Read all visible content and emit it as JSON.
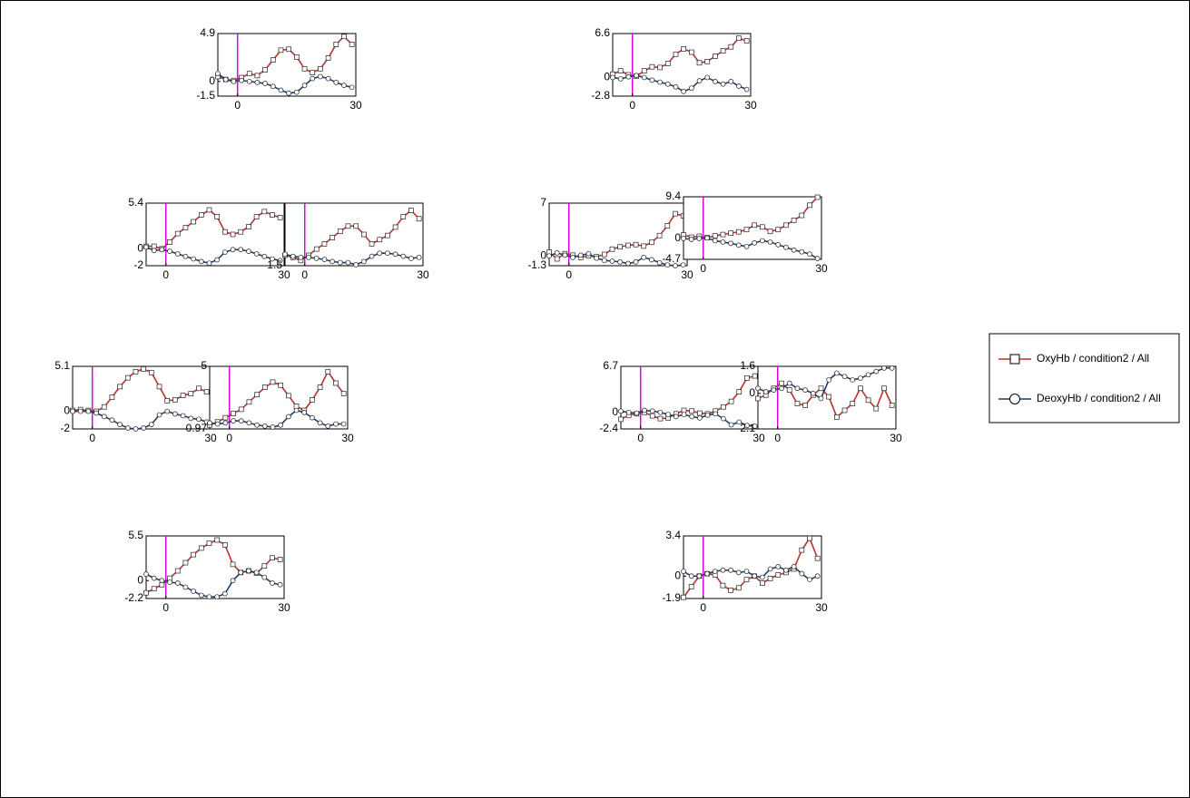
{
  "chart_data": [
    {
      "type": "line",
      "legend": "right",
      "xlim": [
        -5,
        30
      ],
      "xticks": [
        0,
        30
      ],
      "ylim": [
        -1.5,
        4.9
      ],
      "yticks": [
        -1.5,
        0,
        4.9
      ],
      "vlines": [
        0
      ],
      "x": [
        -5,
        -3,
        -1,
        1,
        3,
        5,
        7,
        9,
        11,
        13,
        15,
        17,
        19,
        21,
        23,
        25,
        27,
        29
      ],
      "series": [
        {
          "name": "OxyHb / condition2 / All",
          "color": "#c0302a",
          "values": [
            0.5,
            0.2,
            0.1,
            0.4,
            0.8,
            0.6,
            1.2,
            2.2,
            3.2,
            3.3,
            2.5,
            1.3,
            0.9,
            1.3,
            2.4,
            3.8,
            4.6,
            3.8
          ]
        },
        {
          "name": "DeoxyHb / condition2 / All",
          "color": "#1f3d6e",
          "values": [
            0.8,
            0.2,
            0,
            0.1,
            0,
            -0.1,
            -0.2,
            -0.5,
            -0.9,
            -1.2,
            -1.1,
            -0.4,
            0.3,
            0.5,
            0.3,
            -0.1,
            -0.4,
            -0.6
          ]
        }
      ]
    },
    {
      "type": "line",
      "xlim": [
        -5,
        30
      ],
      "xticks": [
        0,
        30
      ],
      "ylim": [
        -2.8,
        6.6
      ],
      "yticks": [
        -2.8,
        0,
        6.6
      ],
      "vlines": [
        0
      ],
      "x": [
        -5,
        -3,
        -1,
        1,
        3,
        5,
        7,
        9,
        11,
        13,
        15,
        17,
        19,
        21,
        23,
        25,
        27,
        29
      ],
      "series": [
        {
          "name": "OxyHb / condition2 / All",
          "color": "#c0302a",
          "values": [
            0.5,
            1,
            0.4,
            0.2,
            1,
            1.6,
            1.5,
            2.1,
            3.5,
            4.3,
            3.8,
            2.2,
            2.4,
            3.2,
            4,
            4.6,
            5.9,
            5.5
          ]
        },
        {
          "name": "DeoxyHb / condition2 / All",
          "color": "#1f3d6e",
          "values": [
            0,
            -0.2,
            0.1,
            0.3,
            0,
            -0.4,
            -0.7,
            -1,
            -1.4,
            -2.1,
            -1.6,
            -0.5,
            0,
            -0.6,
            -1,
            -0.6,
            -1.3,
            -1.8
          ]
        }
      ]
    },
    {
      "type": "line",
      "xlim": [
        -5,
        30
      ],
      "xticks": [
        0,
        30
      ],
      "ylim": [
        -2,
        5.4
      ],
      "yticks": [
        -2,
        0,
        5.4
      ],
      "vlines": [
        0
      ],
      "x": [
        -5,
        -3,
        -1,
        1,
        3,
        5,
        7,
        9,
        11,
        13,
        15,
        17,
        19,
        21,
        23,
        25,
        27,
        29
      ],
      "series": [
        {
          "name": "OxyHb / condition2 / All",
          "color": "#c0302a",
          "values": [
            0.3,
            0.3,
            0,
            0.8,
            1.8,
            2.5,
            3.2,
            4,
            4.6,
            3.8,
            2,
            1.7,
            2,
            2.6,
            3.8,
            4.4,
            4,
            3.7
          ]
        },
        {
          "name": "DeoxyHb / condition2 / All",
          "color": "#1f3d6e",
          "values": [
            0.2,
            -0.2,
            -0.1,
            -0.3,
            -0.6,
            -0.9,
            -1.2,
            -1.5,
            -1.7,
            -1.3,
            -0.4,
            -0.1,
            -0.1,
            -0.3,
            -0.6,
            -0.9,
            -1.2,
            -1.4
          ]
        }
      ]
    },
    {
      "type": "line",
      "xlim": [
        -5,
        30
      ],
      "xticks": [
        0,
        30
      ],
      "ylim": [
        -1.5,
        4.5
      ],
      "yticks": [
        -1.5
      ],
      "vlines": [
        0
      ],
      "x": [
        -5,
        -3,
        -1,
        1,
        3,
        5,
        7,
        9,
        11,
        13,
        15,
        17,
        19,
        21,
        23,
        25,
        27,
        29
      ],
      "series": [
        {
          "name": "OxyHb / condition2 / All",
          "color": "#c0302a",
          "values": [
            -0.5,
            -0.7,
            -1,
            -0.5,
            0.1,
            0.6,
            1.2,
            1.8,
            2.3,
            2.3,
            1.5,
            0.6,
            1,
            1.4,
            2.2,
            3.2,
            3.8,
            3
          ]
        },
        {
          "name": "DeoxyHb / condition2 / All",
          "color": "#1f3d6e",
          "values": [
            -0.4,
            -0.6,
            -0.7,
            -0.7,
            -0.8,
            -0.9,
            -1.1,
            -1.2,
            -1.2,
            -1.4,
            -1.1,
            -0.6,
            -0.3,
            -0.3,
            -0.4,
            -0.6,
            -0.8,
            -0.7
          ]
        }
      ]
    },
    {
      "type": "line",
      "xlim": [
        -5,
        30
      ],
      "xticks": [
        0,
        30
      ],
      "ylim": [
        -1.3,
        7
      ],
      "yticks": [
        -1.3,
        0,
        7
      ],
      "vlines": [
        0
      ],
      "x": [
        -5,
        -3,
        -1,
        1,
        3,
        5,
        7,
        9,
        11,
        13,
        15,
        17,
        19,
        21,
        23,
        25,
        27,
        29
      ],
      "series": [
        {
          "name": "OxyHb / condition2 / All",
          "color": "#c0302a",
          "values": [
            0.5,
            -0.4,
            0.3,
            0.1,
            -0.2,
            0,
            -0.1,
            0.2,
            0.9,
            1.2,
            1.4,
            1.5,
            1.3,
            1.8,
            2.7,
            4,
            5.6,
            5.3
          ]
        },
        {
          "name": "DeoxyHb / condition2 / All",
          "color": "#1f3d6e",
          "values": [
            0,
            0.4,
            0.1,
            -0.2,
            0.1,
            0.3,
            -0.3,
            -0.6,
            -0.7,
            -0.8,
            -1,
            -0.8,
            -0.2,
            -0.5,
            -0.9,
            -1.2,
            -1.3,
            -1.2
          ]
        }
      ]
    },
    {
      "type": "line",
      "xlim": [
        -5,
        30
      ],
      "xticks": [
        0,
        30
      ],
      "ylim": [
        -4.7,
        9.4
      ],
      "yticks": [
        -4.7,
        0,
        9.4
      ],
      "vlines": [
        0
      ],
      "x": [
        -5,
        -3,
        -1,
        1,
        3,
        5,
        7,
        9,
        11,
        13,
        15,
        17,
        19,
        21,
        23,
        25,
        27,
        29
      ],
      "series": [
        {
          "name": "OxyHb / condition2 / All",
          "color": "#c0302a",
          "values": [
            0.8,
            0.3,
            0.5,
            0.2,
            0.6,
            0.9,
            1.2,
            1.5,
            2,
            3,
            2.6,
            1.6,
            2,
            3,
            4.1,
            5.2,
            7.5,
            9.3
          ]
        },
        {
          "name": "DeoxyHb / condition2 / All",
          "color": "#1f3d6e",
          "values": [
            0,
            -0.2,
            0,
            0.1,
            -0.5,
            -0.8,
            -1.1,
            -1.5,
            -1.8,
            -1,
            -0.5,
            -0.8,
            -1.4,
            -2,
            -2.6,
            -3,
            -3.5,
            -4.5
          ]
        }
      ]
    },
    {
      "type": "line",
      "xlim": [
        -5,
        30
      ],
      "xticks": [
        0,
        30
      ],
      "ylim": [
        -2,
        5.1
      ],
      "yticks": [
        -2,
        0,
        5.1
      ],
      "vlines": [
        0
      ],
      "x": [
        -5,
        -3,
        -1,
        1,
        3,
        5,
        7,
        9,
        11,
        13,
        15,
        17,
        19,
        21,
        23,
        25,
        27,
        29
      ],
      "series": [
        {
          "name": "OxyHb / condition2 / All",
          "color": "#c0302a",
          "values": [
            0.1,
            0.2,
            0.1,
            0,
            0.5,
            1.6,
            2.8,
            3.8,
            4.5,
            4.8,
            4.4,
            2.8,
            1.2,
            1.3,
            1.8,
            2,
            2.6,
            2.2
          ]
        },
        {
          "name": "DeoxyHb / condition2 / All",
          "color": "#1f3d6e",
          "values": [
            0,
            0,
            0,
            -0.2,
            -0.6,
            -1,
            -1.5,
            -1.9,
            -2,
            -1.9,
            -1.5,
            -0.4,
            0,
            -0.3,
            -0.5,
            -0.8,
            -0.9,
            -1.2
          ]
        }
      ]
    },
    {
      "type": "line",
      "xlim": [
        -5,
        30
      ],
      "xticks": [
        0,
        30
      ],
      "ylim": [
        -0.97,
        5
      ],
      "yticks": [
        -0.97,
        5
      ],
      "vlines": [
        0
      ],
      "x": [
        -5,
        -3,
        -1,
        1,
        3,
        5,
        7,
        9,
        11,
        13,
        15,
        17,
        19,
        21,
        23,
        25,
        27,
        29
      ],
      "series": [
        {
          "name": "OxyHb / condition2 / All",
          "color": "#c0302a",
          "values": [
            -0.6,
            -0.3,
            0.1,
            0.5,
            0.9,
            1.6,
            2.3,
            3,
            3.5,
            3.2,
            2.2,
            1.2,
            0.8,
            1.8,
            3,
            4.5,
            3.4,
            2.4
          ]
        },
        {
          "name": "DeoxyHb / condition2 / All",
          "color": "#1f3d6e",
          "values": [
            -0.4,
            -0.5,
            -0.4,
            -0.2,
            -0.2,
            -0.4,
            -0.6,
            -0.7,
            -0.8,
            -0.6,
            0.2,
            0.8,
            0.6,
            0.1,
            -0.4,
            -0.7,
            -0.5,
            -0.5
          ]
        }
      ]
    },
    {
      "type": "line",
      "xlim": [
        -5,
        30
      ],
      "xticks": [
        0,
        30
      ],
      "ylim": [
        -2.4,
        6.7
      ],
      "yticks": [
        -2.4,
        0,
        6.7
      ],
      "vlines": [
        0
      ],
      "x": [
        -5,
        -3,
        -1,
        1,
        3,
        5,
        7,
        9,
        11,
        13,
        15,
        17,
        19,
        21,
        23,
        25,
        27,
        29
      ],
      "series": [
        {
          "name": "OxyHb / condition2 / All",
          "color": "#c0302a",
          "values": [
            -1,
            -0.4,
            -0.2,
            0,
            -0.5,
            -0.9,
            -0.8,
            -0.2,
            0.3,
            0.2,
            -0.1,
            -0.2,
            0.2,
            0.8,
            1.6,
            3,
            5,
            5.3
          ]
        },
        {
          "name": "DeoxyHb / condition2 / All",
          "color": "#1f3d6e",
          "values": [
            0.2,
            0,
            -0.1,
            0.3,
            0.2,
            0,
            -0.3,
            -0.6,
            -0.3,
            -0.6,
            -0.8,
            -0.4,
            -0.2,
            -0.9,
            -1.8,
            -1.4,
            -1.9,
            -2
          ]
        }
      ]
    },
    {
      "type": "line",
      "xlim": [
        -5,
        30
      ],
      "xticks": [
        0,
        30
      ],
      "ylim": [
        -2.1,
        1.6
      ],
      "yticks": [
        -2.1,
        0,
        1.6
      ],
      "vlines": [
        0
      ],
      "x": [
        -5,
        -3,
        -1,
        1,
        3,
        5,
        7,
        9,
        11,
        13,
        15,
        17,
        19,
        21,
        23,
        25,
        27,
        29
      ],
      "series": [
        {
          "name": "OxyHb / condition2 / All",
          "color": "#c0302a",
          "values": [
            -0.3,
            -0.1,
            0.3,
            0.6,
            0.2,
            -0.6,
            -0.7,
            -0.1,
            0.3,
            -0.2,
            -1.4,
            -1,
            -0.6,
            0.3,
            -0.4,
            -0.9,
            0.3,
            -0.7
          ]
        },
        {
          "name": "DeoxyHb / condition2 / All",
          "color": "#1f3d6e",
          "values": [
            0.3,
            0.1,
            0.2,
            0.3,
            0.6,
            0.3,
            0.2,
            0,
            -0.3,
            0.8,
            1.2,
            1,
            0.8,
            0.9,
            1.1,
            1.3,
            1.5,
            1.5
          ]
        }
      ]
    },
    {
      "type": "line",
      "xlim": [
        -5,
        30
      ],
      "xticks": [
        0,
        30
      ],
      "ylim": [
        -2.2,
        5.5
      ],
      "yticks": [
        -2.2,
        0,
        5.5
      ],
      "vlines": [
        0
      ],
      "x": [
        -5,
        -3,
        -1,
        1,
        3,
        5,
        7,
        9,
        11,
        13,
        15,
        17,
        19,
        21,
        23,
        25,
        27,
        29
      ],
      "series": [
        {
          "name": "OxyHb / condition2 / All",
          "color": "#c0302a",
          "values": [
            -1.5,
            -1,
            -0.5,
            0.3,
            1.2,
            2.2,
            3.2,
            4,
            4.6,
            5,
            4.4,
            2,
            1,
            1.2,
            0.9,
            1.8,
            2.8,
            2.6
          ]
        },
        {
          "name": "DeoxyHb / condition2 / All",
          "color": "#1f3d6e",
          "values": [
            0.8,
            0.3,
            0,
            -0.2,
            -0.3,
            -0.8,
            -1.3,
            -1.8,
            -2,
            -2,
            -1.6,
            0,
            1,
            1.2,
            1,
            0.4,
            -0.3,
            -0.5
          ]
        }
      ]
    },
    {
      "type": "line",
      "xlim": [
        -5,
        30
      ],
      "xticks": [
        0,
        30
      ],
      "ylim": [
        -1.9,
        3.4
      ],
      "yticks": [
        -1.9,
        0,
        3.4
      ],
      "vlines": [
        0
      ],
      "x": [
        -5,
        -3,
        -1,
        1,
        3,
        5,
        7,
        9,
        11,
        13,
        15,
        17,
        19,
        21,
        23,
        25,
        27,
        29
      ],
      "series": [
        {
          "name": "OxyHb / condition2 / All",
          "color": "#c0302a",
          "values": [
            -1.8,
            -0.9,
            0,
            0.2,
            0.1,
            -0.8,
            -1.2,
            -1,
            -0.3,
            0,
            -0.6,
            -0.2,
            0.1,
            0.3,
            0.6,
            2.2,
            3.2,
            1.5
          ]
        },
        {
          "name": "DeoxyHb / condition2 / All",
          "color": "#1f3d6e",
          "values": [
            0.4,
            0,
            0,
            0.2,
            0.4,
            0.5,
            0.5,
            0.3,
            0.4,
            0,
            -0.1,
            0.6,
            0.8,
            0.5,
            0.8,
            0.2,
            -0.3,
            0
          ]
        }
      ]
    }
  ]
}
